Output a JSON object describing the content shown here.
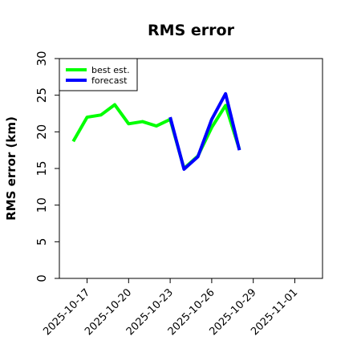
{
  "chart_data": {
    "type": "line",
    "title": "RMS error",
    "ylabel": "RMS error (km)",
    "xlabel": "",
    "ylim": [
      0,
      30
    ],
    "xlim": [
      "2025-10-15",
      "2025-11-03"
    ],
    "yticks": [
      0,
      5,
      10,
      15,
      20,
      25,
      30
    ],
    "xticks": [
      {
        "label": "2025-10-17",
        "value": "2025-10-17",
        "color": "#000000"
      },
      {
        "label": "2025-10-20",
        "value": "2025-10-20",
        "color": "#000000"
      },
      {
        "label": "2025-10-23",
        "value": "2025-10-23",
        "color": "#008000"
      },
      {
        "label": "2025-10-26",
        "value": "2025-10-26",
        "color": "#000000"
      },
      {
        "label": "2025-10-29",
        "value": "2025-10-29",
        "color": "#000000"
      },
      {
        "label": "2025-11-01",
        "value": "2025-11-01",
        "color": "#000000"
      }
    ],
    "grid": false,
    "legend": {
      "placement": "top-left",
      "entries": [
        "best est.",
        "forecast"
      ]
    },
    "series": [
      {
        "name": "best est.",
        "color": "#00ff00",
        "points": [
          {
            "x": "2025-10-16",
            "y": 18.7
          },
          {
            "x": "2025-10-17",
            "y": 22.0
          },
          {
            "x": "2025-10-18",
            "y": 22.3
          },
          {
            "x": "2025-10-19",
            "y": 23.7
          },
          {
            "x": "2025-10-20",
            "y": 21.1
          },
          {
            "x": "2025-10-21",
            "y": 21.4
          },
          {
            "x": "2025-10-22",
            "y": 20.8
          },
          {
            "x": "2025-10-23",
            "y": 21.7
          },
          {
            "x": "2025-10-24",
            "y": 15.0
          },
          {
            "x": "2025-10-25",
            "y": 16.7
          },
          {
            "x": "2025-10-26",
            "y": 20.6
          },
          {
            "x": "2025-10-27",
            "y": 23.6
          },
          {
            "x": "2025-10-28",
            "y": 17.6
          }
        ]
      },
      {
        "name": "forecast",
        "color": "#0000ff",
        "points": [
          {
            "x": "2025-10-23",
            "y": 22.0
          },
          {
            "x": "2025-10-24",
            "y": 14.9
          },
          {
            "x": "2025-10-25",
            "y": 16.6
          },
          {
            "x": "2025-10-26",
            "y": 21.7
          },
          {
            "x": "2025-10-27",
            "y": 25.2
          },
          {
            "x": "2025-10-28",
            "y": 17.5
          }
        ]
      }
    ]
  }
}
